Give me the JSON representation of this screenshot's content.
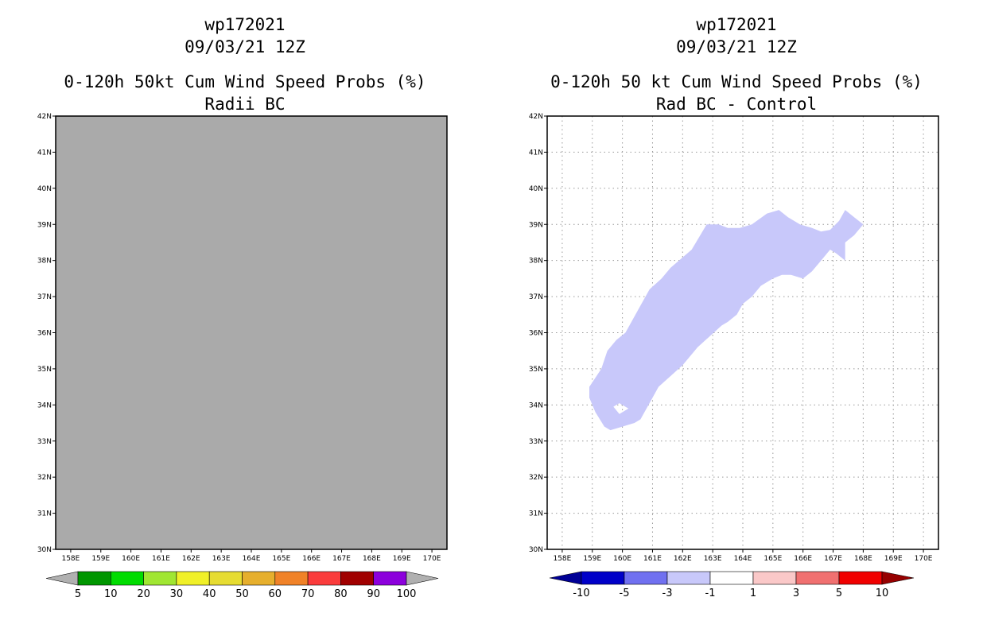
{
  "chart_data": [
    {
      "type": "heatmap",
      "storm_id": "wp172021",
      "datetime": "09/03/21 12Z",
      "title": "0-120h 50kt Cum Wind Speed Probs (%)",
      "subtitle": "Radii BC",
      "xlim": [
        157.5,
        170.5
      ],
      "ylim": [
        30,
        42
      ],
      "x_ticks": [
        158,
        159,
        160,
        161,
        162,
        163,
        164,
        165,
        166,
        167,
        168,
        169,
        170
      ],
      "x_tick_labels": [
        "158E",
        "159E",
        "160E",
        "161E",
        "162E",
        "163E",
        "164E",
        "165E",
        "166E",
        "167E",
        "168E",
        "169E",
        "170E"
      ],
      "y_ticks": [
        30,
        31,
        32,
        33,
        34,
        35,
        36,
        37,
        38,
        39,
        40,
        41,
        42
      ],
      "y_tick_labels": [
        "30N",
        "31N",
        "32N",
        "33N",
        "34N",
        "35N",
        "36N",
        "37N",
        "38N",
        "39N",
        "40N",
        "41N",
        "42N"
      ],
      "fill": "#aaaaaa",
      "grid": false,
      "colorbar": {
        "labels": [
          "5",
          "10",
          "20",
          "30",
          "40",
          "50",
          "60",
          "70",
          "80",
          "90",
          "100"
        ],
        "colors": [
          "#009600",
          "#00dc00",
          "#a0e632",
          "#f0f028",
          "#e6dc32",
          "#e6af2d",
          "#f08228",
          "#fa3c3c",
          "#a00000",
          "#8c00dc"
        ],
        "end_color": "#b0b0b0"
      }
    },
    {
      "type": "heatmap",
      "storm_id": "wp172021",
      "datetime": "09/03/21 12Z",
      "title": "0-120h 50 kt Cum Wind Speed Probs (%)",
      "subtitle": "Rad BC - Control",
      "xlim": [
        157.5,
        170.5
      ],
      "ylim": [
        30,
        42
      ],
      "x_ticks": [
        158,
        159,
        160,
        161,
        162,
        163,
        164,
        165,
        166,
        167,
        168,
        169,
        170
      ],
      "x_tick_labels": [
        "158E",
        "159E",
        "160E",
        "161E",
        "162E",
        "163E",
        "164E",
        "165E",
        "166E",
        "167E",
        "168E",
        "169E",
        "170E"
      ],
      "y_ticks": [
        30,
        31,
        32,
        33,
        34,
        35,
        36,
        37,
        38,
        39,
        40,
        41,
        42
      ],
      "y_tick_labels": [
        "30N",
        "31N",
        "32N",
        "33N",
        "34N",
        "35N",
        "36N",
        "37N",
        "38N",
        "39N",
        "40N",
        "41N",
        "42N"
      ],
      "grid": true,
      "region": {
        "value_range": "-3 to -1",
        "color": "#c8c8fa",
        "outline_lonlat": [
          [
            158.9,
            34.5
          ],
          [
            159.3,
            35.0
          ],
          [
            159.5,
            35.5
          ],
          [
            159.8,
            35.8
          ],
          [
            160.1,
            36.0
          ],
          [
            160.5,
            36.6
          ],
          [
            160.9,
            37.2
          ],
          [
            161.3,
            37.5
          ],
          [
            161.6,
            37.8
          ],
          [
            162.3,
            38.3
          ],
          [
            162.8,
            39.0
          ],
          [
            163.2,
            39.0
          ],
          [
            163.5,
            38.9
          ],
          [
            163.9,
            38.9
          ],
          [
            164.3,
            39.0
          ],
          [
            164.8,
            39.3
          ],
          [
            165.2,
            39.4
          ],
          [
            165.5,
            39.2
          ],
          [
            165.9,
            39.0
          ],
          [
            166.3,
            38.9
          ],
          [
            166.6,
            38.8
          ],
          [
            166.9,
            38.85
          ],
          [
            167.2,
            39.1
          ],
          [
            167.4,
            39.4
          ],
          [
            167.7,
            39.2
          ],
          [
            168.0,
            39.0
          ],
          [
            167.7,
            38.7
          ],
          [
            167.4,
            38.5
          ],
          [
            167.4,
            38.0
          ],
          [
            167.1,
            38.2
          ],
          [
            166.9,
            38.3
          ],
          [
            166.6,
            38.0
          ],
          [
            166.3,
            37.7
          ],
          [
            166.0,
            37.5
          ],
          [
            165.6,
            37.6
          ],
          [
            165.3,
            37.6
          ],
          [
            165.0,
            37.5
          ],
          [
            164.6,
            37.3
          ],
          [
            164.3,
            37.0
          ],
          [
            164.0,
            36.8
          ],
          [
            163.8,
            36.5
          ],
          [
            163.5,
            36.3
          ],
          [
            163.3,
            36.2
          ],
          [
            162.9,
            35.9
          ],
          [
            162.5,
            35.6
          ],
          [
            162.0,
            35.1
          ],
          [
            161.6,
            34.8
          ],
          [
            161.2,
            34.5
          ],
          [
            161.0,
            34.2
          ],
          [
            160.8,
            33.9
          ],
          [
            160.6,
            33.6
          ],
          [
            160.4,
            33.5
          ],
          [
            160.0,
            33.4
          ],
          [
            159.6,
            33.3
          ],
          [
            159.4,
            33.4
          ],
          [
            159.1,
            33.8
          ],
          [
            158.9,
            34.2
          ],
          [
            158.9,
            34.5
          ]
        ],
        "hole_lonlat": [
          [
            159.7,
            33.95
          ],
          [
            159.9,
            34.05
          ],
          [
            160.2,
            33.9
          ],
          [
            159.9,
            33.75
          ],
          [
            159.7,
            33.95
          ]
        ]
      },
      "colorbar": {
        "labels": [
          "-10",
          "-5",
          "-3",
          "-1",
          "1",
          "3",
          "5",
          "10"
        ],
        "colors": [
          "#0000c8",
          "#7070f0",
          "#c8c8fa",
          "#ffffff",
          "#fac8c8",
          "#f07070",
          "#f00000"
        ],
        "end_low": "#000096",
        "end_high": "#960000"
      }
    }
  ]
}
